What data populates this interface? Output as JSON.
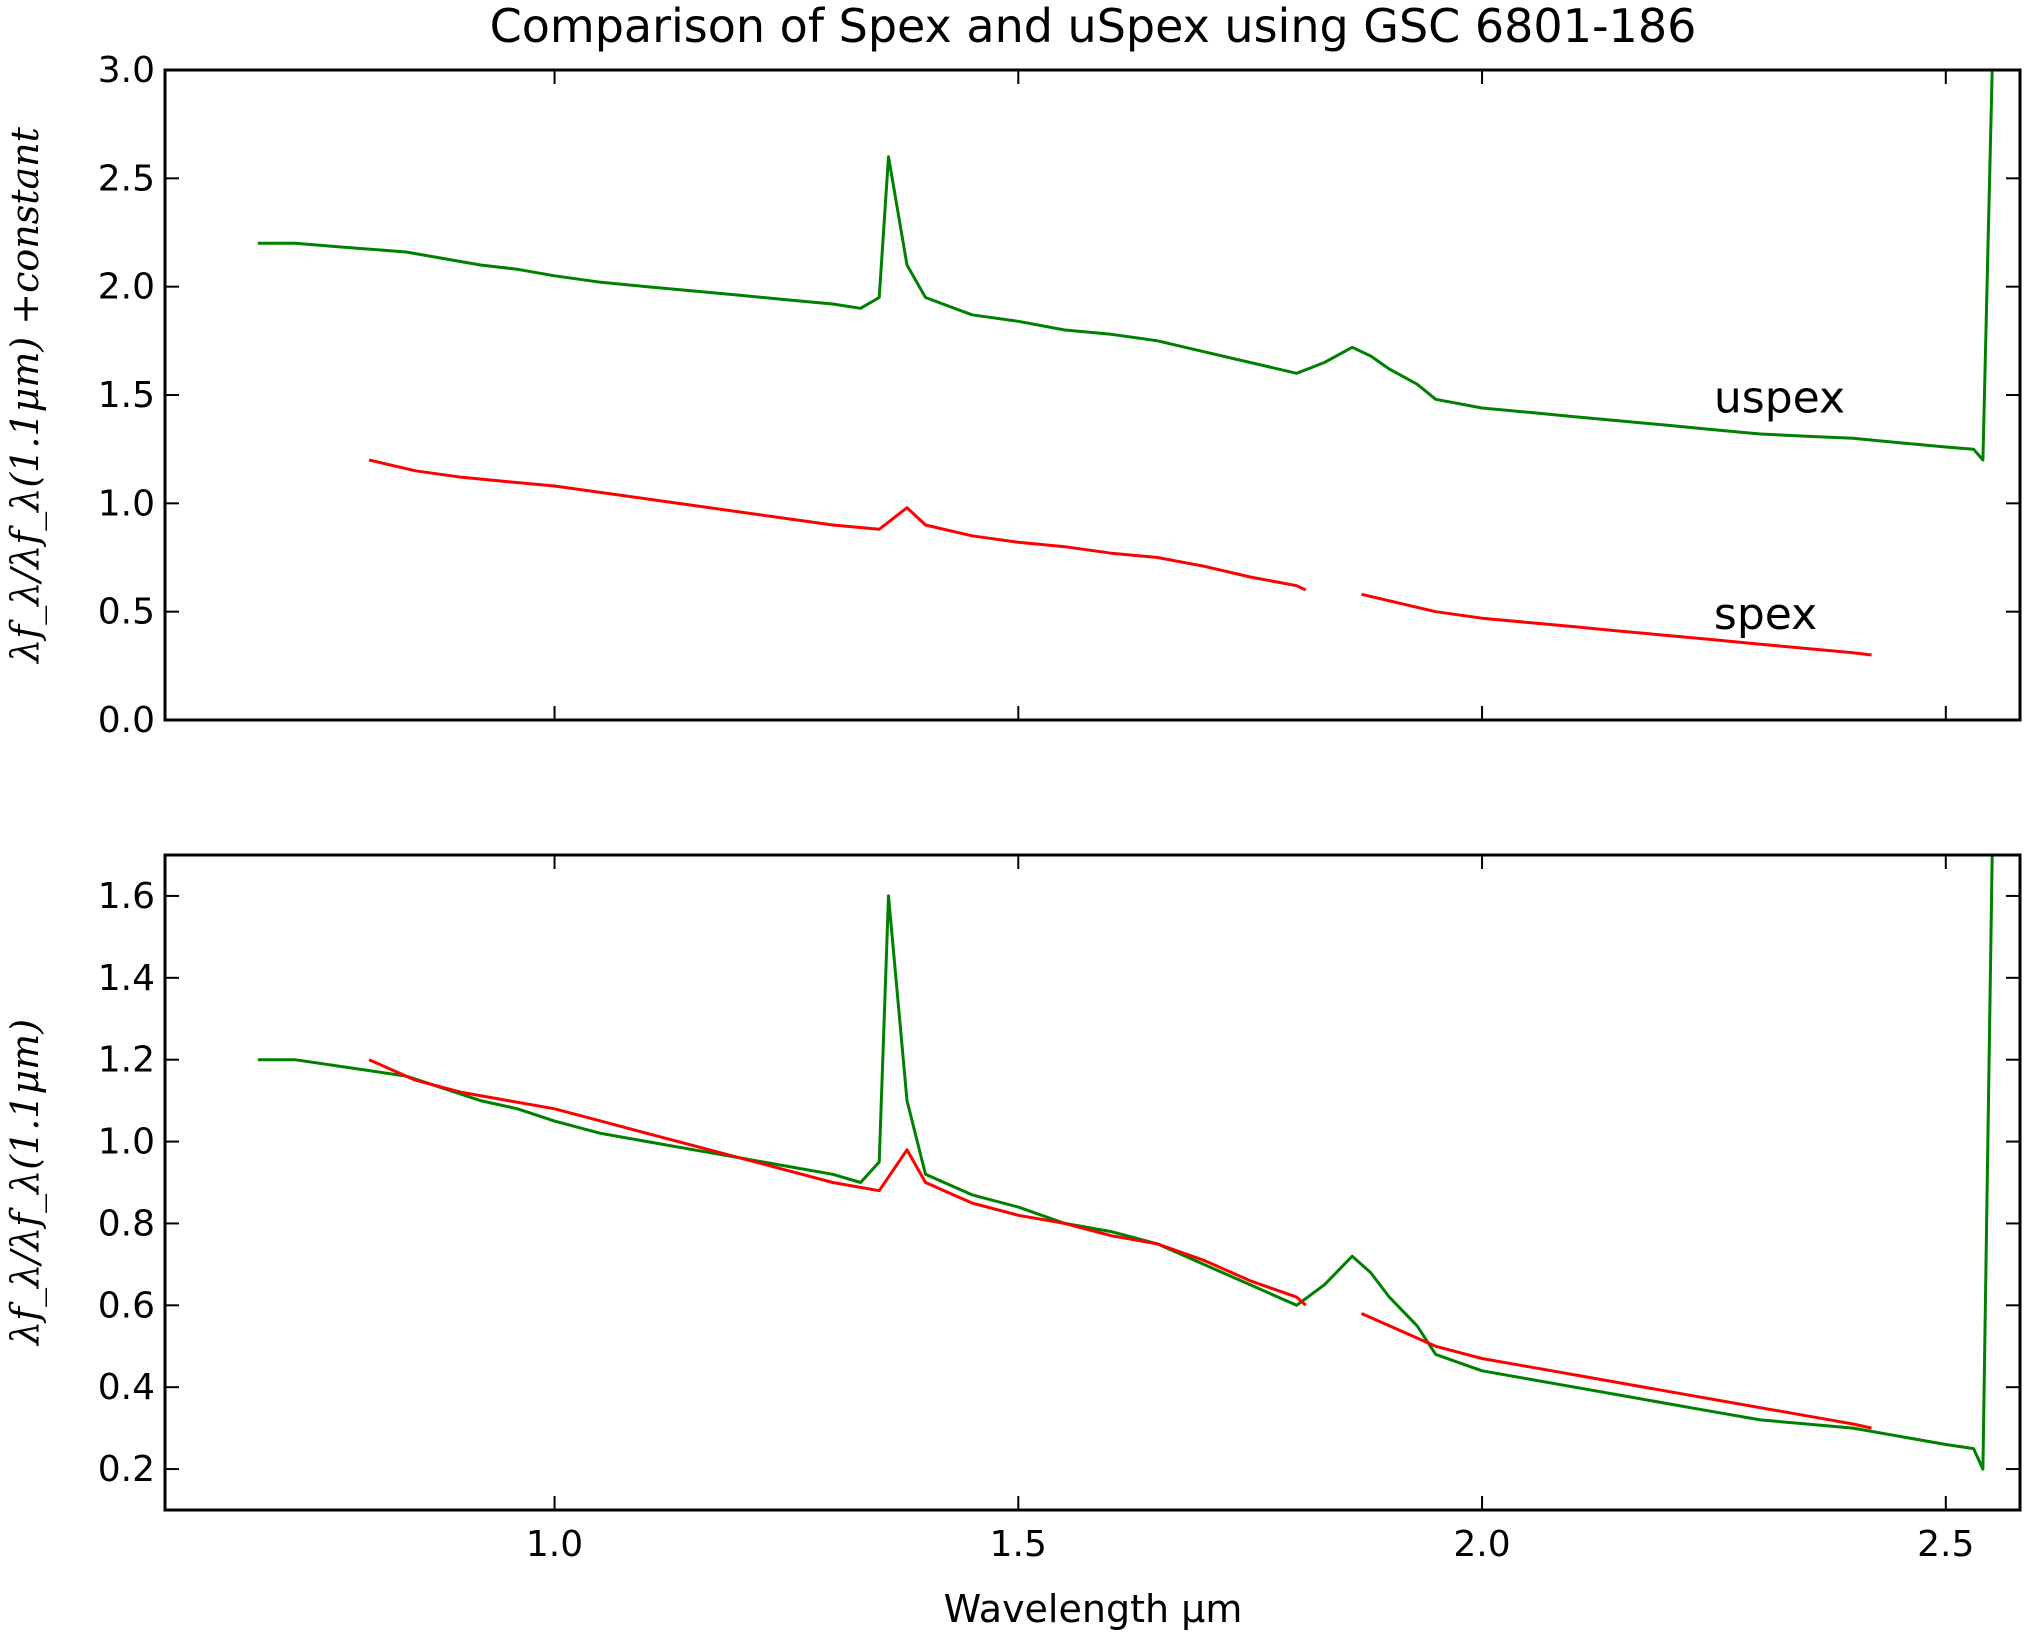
{
  "chart_data": {
    "type": "line",
    "title": "Comparison of Spex and uSpex using GSC 6801-186",
    "xlabel": "Wavelength μm",
    "panels": [
      {
        "ylabel": "λf_λ/λf_λ(1.1μm) +constant",
        "xlim": [
          0.58,
          2.58
        ],
        "ylim": [
          0.0,
          3.0
        ],
        "xticks": [
          "1.0",
          "1.5",
          "2.0",
          "2.5"
        ],
        "yticks": [
          "0.0",
          "0.5",
          "1.0",
          "1.5",
          "2.0",
          "2.5",
          "3.0"
        ],
        "annotations": [
          {
            "text": "uspex",
            "x": 2.25,
            "y": 1.42
          },
          {
            "text": "spex",
            "x": 2.25,
            "y": 0.42
          }
        ],
        "series": [
          {
            "color": "#008000",
            "x": [
              0.68,
              0.72,
              0.78,
              0.84,
              0.88,
              0.92,
              0.96,
              1.0,
              1.05,
              1.1,
              1.15,
              1.2,
              1.25,
              1.3,
              1.33,
              1.35,
              1.36,
              1.38,
              1.4,
              1.45,
              1.5,
              1.55,
              1.6,
              1.65,
              1.7,
              1.75,
              1.8,
              1.83,
              1.86,
              1.88,
              1.9,
              1.93,
              1.95,
              2.0,
              2.05,
              2.1,
              2.15,
              2.2,
              2.25,
              2.3,
              2.35,
              2.4,
              2.45,
              2.5,
              2.53,
              2.54,
              2.55
            ],
            "y": [
              2.2,
              2.2,
              2.18,
              2.16,
              2.13,
              2.1,
              2.08,
              2.05,
              2.02,
              2.0,
              1.98,
              1.96,
              1.94,
              1.92,
              1.9,
              1.95,
              2.6,
              2.1,
              1.95,
              1.87,
              1.84,
              1.8,
              1.78,
              1.75,
              1.7,
              1.65,
              1.6,
              1.65,
              1.72,
              1.68,
              1.62,
              1.55,
              1.48,
              1.44,
              1.42,
              1.4,
              1.38,
              1.36,
              1.34,
              1.32,
              1.31,
              1.3,
              1.28,
              1.26,
              1.25,
              1.2,
              3.0
            ]
          },
          {
            "color": "#ff0000",
            "x": [
              0.8,
              0.85,
              0.9,
              0.95,
              1.0,
              1.05,
              1.1,
              1.15,
              1.2,
              1.25,
              1.3,
              1.35,
              1.38,
              1.4,
              1.45,
              1.5,
              1.55,
              1.6,
              1.65,
              1.7,
              1.75,
              1.8,
              1.81
            ],
            "y": [
              1.2,
              1.15,
              1.12,
              1.1,
              1.08,
              1.05,
              1.02,
              0.99,
              0.96,
              0.93,
              0.9,
              0.88,
              0.98,
              0.9,
              0.85,
              0.82,
              0.8,
              0.77,
              0.75,
              0.71,
              0.66,
              0.62,
              0.6
            ]
          },
          {
            "color": "#ff0000",
            "x": [
              1.87,
              1.9,
              1.95,
              2.0,
              2.05,
              2.1,
              2.15,
              2.2,
              2.25,
              2.3,
              2.35,
              2.4,
              2.42
            ],
            "y": [
              0.58,
              0.55,
              0.5,
              0.47,
              0.45,
              0.43,
              0.41,
              0.39,
              0.37,
              0.35,
              0.33,
              0.31,
              0.3
            ]
          }
        ]
      },
      {
        "ylabel": "λf_λ/λf_λ(1.1μm)",
        "xlim": [
          0.58,
          2.58
        ],
        "ylim": [
          0.1,
          1.7
        ],
        "xticks": [
          "1.0",
          "1.5",
          "2.0",
          "2.5"
        ],
        "yticks": [
          "0.2",
          "0.4",
          "0.6",
          "0.8",
          "1.0",
          "1.2",
          "1.4",
          "1.6"
        ],
        "series": [
          {
            "color": "#008000",
            "x": [
              0.68,
              0.72,
              0.78,
              0.84,
              0.88,
              0.92,
              0.96,
              1.0,
              1.05,
              1.1,
              1.15,
              1.2,
              1.25,
              1.3,
              1.33,
              1.35,
              1.36,
              1.38,
              1.4,
              1.45,
              1.5,
              1.55,
              1.6,
              1.65,
              1.7,
              1.75,
              1.8,
              1.83,
              1.86,
              1.88,
              1.9,
              1.93,
              1.95,
              2.0,
              2.05,
              2.1,
              2.15,
              2.2,
              2.25,
              2.3,
              2.35,
              2.4,
              2.45,
              2.5,
              2.53,
              2.54,
              2.55
            ],
            "y": [
              1.2,
              1.2,
              1.18,
              1.16,
              1.13,
              1.1,
              1.08,
              1.05,
              1.02,
              1.0,
              0.98,
              0.96,
              0.94,
              0.92,
              0.9,
              0.95,
              1.6,
              1.1,
              0.92,
              0.87,
              0.84,
              0.8,
              0.78,
              0.75,
              0.7,
              0.65,
              0.6,
              0.65,
              0.72,
              0.68,
              0.62,
              0.55,
              0.48,
              0.44,
              0.42,
              0.4,
              0.38,
              0.36,
              0.34,
              0.32,
              0.31,
              0.3,
              0.28,
              0.26,
              0.25,
              0.2,
              1.7
            ]
          },
          {
            "color": "#ff0000",
            "x": [
              0.8,
              0.85,
              0.9,
              0.95,
              1.0,
              1.05,
              1.1,
              1.15,
              1.2,
              1.25,
              1.3,
              1.35,
              1.38,
              1.4,
              1.45,
              1.5,
              1.55,
              1.6,
              1.65,
              1.7,
              1.75,
              1.8,
              1.81
            ],
            "y": [
              1.2,
              1.15,
              1.12,
              1.1,
              1.08,
              1.05,
              1.02,
              0.99,
              0.96,
              0.93,
              0.9,
              0.88,
              0.98,
              0.9,
              0.85,
              0.82,
              0.8,
              0.77,
              0.75,
              0.71,
              0.66,
              0.62,
              0.6
            ]
          },
          {
            "color": "#ff0000",
            "x": [
              1.87,
              1.9,
              1.95,
              2.0,
              2.05,
              2.1,
              2.15,
              2.2,
              2.25,
              2.3,
              2.35,
              2.4,
              2.42
            ],
            "y": [
              0.58,
              0.55,
              0.5,
              0.47,
              0.45,
              0.43,
              0.41,
              0.39,
              0.37,
              0.35,
              0.33,
              0.31,
              0.3
            ]
          }
        ]
      }
    ]
  }
}
